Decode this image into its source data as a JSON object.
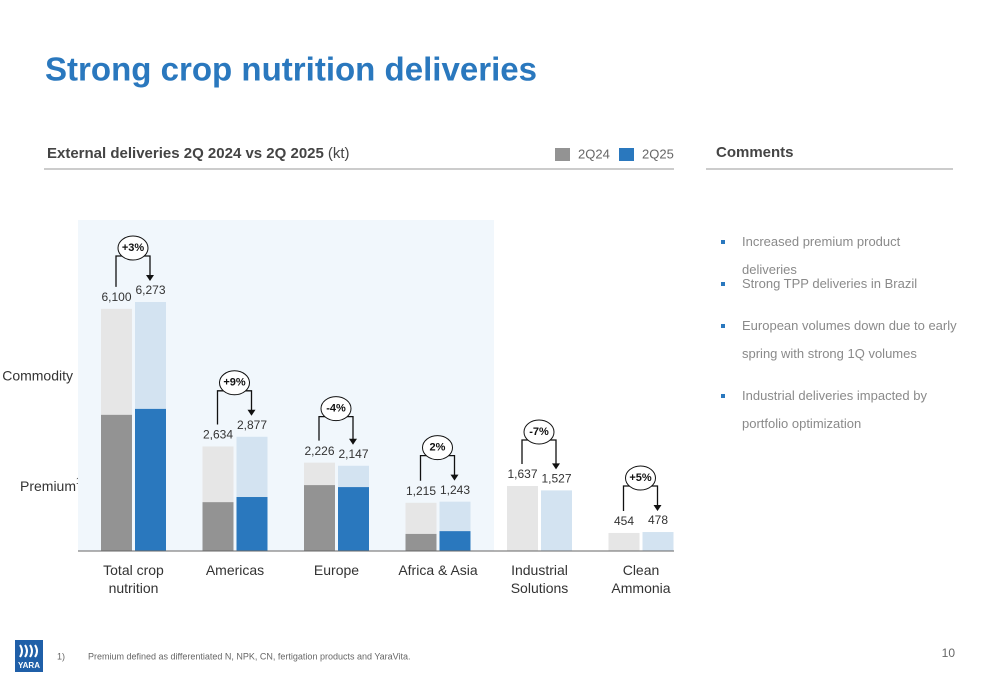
{
  "title": "Strong crop nutrition deliveries",
  "chart_data": {
    "type": "bar",
    "title": "External deliveries 2Q 2024 vs 2Q 2025",
    "unit": "(kt)",
    "categories": [
      "Total crop\nnutrition",
      "Americas",
      "Europe",
      "Africa & Asia",
      "Industrial\nSolutions",
      "Clean\nAmmonia"
    ],
    "series": [
      {
        "name": "2Q24",
        "color": "#939393",
        "commodity_color": "#e6e6e6",
        "values": [
          6100,
          2634,
          2226,
          1215,
          1637,
          454
        ],
        "value_labels": [
          "6,100",
          "2,634",
          "2,226",
          "1,215",
          "1,637",
          "454"
        ],
        "premium_values": [
          3430,
          1230,
          1660,
          430,
          0,
          0
        ]
      },
      {
        "name": "2Q25",
        "color": "#2a78be",
        "commodity_color": "#d3e3f1",
        "values": [
          6273,
          2877,
          2147,
          1243,
          1527,
          478
        ],
        "value_labels": [
          "6,273",
          "2,877",
          "2,147",
          "1,243",
          "1,527",
          "478"
        ],
        "premium_values": [
          3580,
          1360,
          1610,
          500,
          0,
          0
        ]
      }
    ],
    "changes": [
      "+3%",
      "+9%",
      "-4%",
      "2%",
      "-7%",
      "+5%"
    ],
    "segment_labels": {
      "commodity": "Commodity",
      "premium": "Premium",
      "premium_note": "1"
    }
  },
  "comments": {
    "title": "Comments",
    "items": [
      "Increased premium product deliveries",
      "Strong TPP deliveries in Brazil",
      "European volumes down due to early spring with strong 1Q volumes",
      "Industrial deliveries impacted by portfolio optimization"
    ]
  },
  "footnote": {
    "marker": "1)",
    "text": "Premium defined as differentiated N, NPK, CN, fertigation products and YaraVita."
  },
  "page_number": "10",
  "logo": "YARA"
}
